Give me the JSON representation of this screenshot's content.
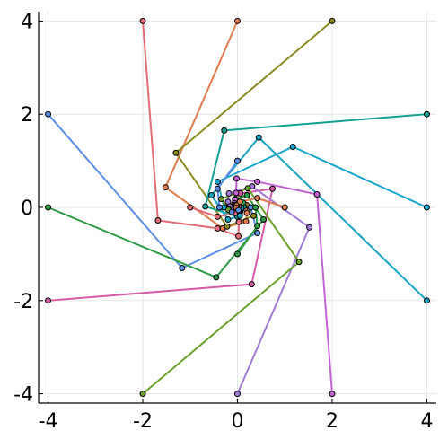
{
  "chart_data": {
    "type": "line",
    "title": "",
    "xlabel": "",
    "ylabel": "",
    "xlim": [
      -4.2,
      4.2
    ],
    "ylim": [
      -4.2,
      4.2
    ],
    "xticks": [
      -4,
      -2,
      0,
      2,
      4
    ],
    "yticks": [
      -4,
      -2,
      0,
      2,
      4
    ],
    "xtick_labels": [
      "-4",
      "-2",
      "0",
      "2",
      "4"
    ],
    "ytick_labels": [
      "-4",
      "-2",
      "0",
      "2",
      "4"
    ],
    "grid": true,
    "legend": "none",
    "series": [
      {
        "color": "#e26c78",
        "x": [
          -2,
          -1.68,
          -0.42,
          0.02,
          0.03,
          0.05,
          0.06,
          0.05
        ],
        "y": [
          4,
          -0.28,
          -0.45,
          -0.62,
          -0.31,
          -0.16,
          -0.09,
          -0.05
        ]
      },
      {
        "color": "#e07a4f",
        "x": [
          0,
          -1.52,
          -0.31,
          0.18,
          0.2,
          0.16,
          0.12,
          0.09
        ],
        "y": [
          4,
          0.43,
          -0.45,
          -0.3,
          -0.12,
          -0.02,
          0.03,
          0.05
        ]
      },
      {
        "color": "#8a8a22",
        "x": [
          2,
          -1.3,
          -0.22,
          0.34,
          0.19,
          0.07,
          0.03,
          0.02
        ],
        "y": [
          4,
          1.17,
          -0.41,
          -0.18,
          0.05,
          0.1,
          0.09,
          0.06
        ]
      },
      {
        "color": "#16a091",
        "x": [
          4,
          -0.28,
          -0.68,
          0.0,
          0.13,
          0.06,
          0.0,
          -0.02
        ],
        "y": [
          2,
          1.65,
          0.02,
          -0.2,
          0.02,
          0.12,
          0.1,
          0.06
        ]
      },
      {
        "color": "#13a4cf",
        "x": [
          4,
          1.17,
          -0.42,
          -0.28,
          -0.06,
          0.03,
          0.04,
          0.02
        ],
        "y": [
          0,
          1.3,
          0.55,
          0.0,
          -0.11,
          -0.03,
          0.03,
          0.04
        ]
      },
      {
        "color": "#5c8ee6",
        "x": [
          -4,
          -1.17,
          0.42,
          0.28,
          0.06,
          -0.03,
          -0.04,
          -0.02
        ],
        "y": [
          2,
          -1.3,
          -0.55,
          0.0,
          0.11,
          0.03,
          -0.03,
          -0.04
        ]
      },
      {
        "color": "#2e9b46",
        "x": [
          -4,
          -0.45,
          0.55,
          0.2,
          -0.05,
          -0.08,
          -0.03,
          0.0
        ],
        "y": [
          0,
          -1.5,
          -0.26,
          0.26,
          0.18,
          0.02,
          -0.05,
          -0.04
        ]
      },
      {
        "color": "#d65aa3",
        "x": [
          -4,
          0.3,
          0.74,
          0.06,
          -0.18,
          -0.1,
          -0.01,
          0.03
        ],
        "y": [
          -2,
          -1.65,
          0.4,
          0.3,
          0.02,
          -0.1,
          -0.07,
          -0.02
        ]
      },
      {
        "color": "#a07ad6",
        "x": [
          0,
          1.52,
          0.31,
          -0.18,
          -0.2,
          -0.16,
          -0.12,
          -0.09
        ],
        "y": [
          -4,
          -0.43,
          0.45,
          0.3,
          0.12,
          0.02,
          -0.03,
          -0.05
        ]
      },
      {
        "color": "#6aa02c",
        "x": [
          -2,
          1.3,
          0.22,
          -0.34,
          -0.19,
          -0.07,
          -0.03,
          -0.02
        ],
        "y": [
          -4,
          -1.17,
          0.41,
          0.18,
          -0.05,
          -0.1,
          -0.09,
          -0.06
        ]
      },
      {
        "color": "#c463d6",
        "x": [
          2,
          1.68,
          0.42,
          -0.02,
          -0.03,
          -0.05,
          -0.06,
          -0.05
        ],
        "y": [
          -4,
          0.28,
          0.55,
          0.62,
          0.31,
          0.16,
          0.09,
          0.05
        ]
      },
      {
        "color": "#17a3c2",
        "x": [
          4,
          0.45,
          -0.55,
          -0.2,
          0.05,
          0.08,
          0.03,
          0.0
        ],
        "y": [
          -2,
          1.5,
          0.26,
          -0.26,
          -0.18,
          -0.02,
          0.05,
          0.04
        ]
      },
      {
        "color": "#e26c78",
        "x": [
          -1.0,
          -0.42,
          -0.05,
          0.02,
          0.02
        ],
        "y": [
          0.0,
          -0.2,
          -0.12,
          -0.04,
          0.01
        ]
      },
      {
        "color": "#2e9b46",
        "x": [
          0.0,
          0.42,
          0.38,
          0.12,
          -0.02
        ],
        "y": [
          -1.0,
          -0.4,
          0.0,
          0.1,
          0.06
        ]
      },
      {
        "color": "#e07a4f",
        "x": [
          1.0,
          0.42,
          0.05,
          -0.02,
          -0.02
        ],
        "y": [
          0.0,
          0.2,
          0.12,
          0.04,
          -0.01
        ]
      },
      {
        "color": "#5c8ee6",
        "x": [
          0.0,
          -0.42,
          -0.38,
          -0.12,
          0.02
        ],
        "y": [
          1.0,
          0.4,
          0.0,
          -0.1,
          -0.06
        ]
      }
    ]
  }
}
